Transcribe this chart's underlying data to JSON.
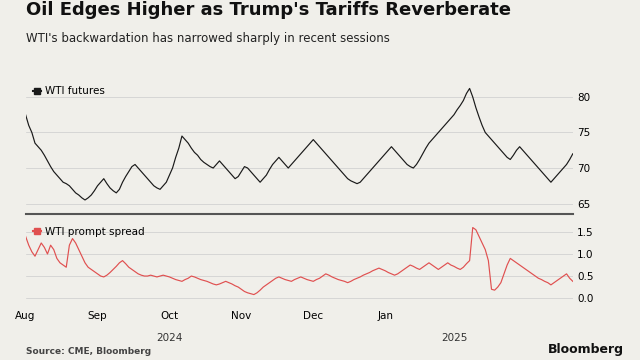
{
  "title": "Oil Edges Higher as Trump's Tariffs Reverberate",
  "subtitle": "WTI's backwardation has narrowed sharply in recent sessions",
  "source": "Source: CME, Bloomberg",
  "watermark": "Bloomberg",
  "panel1_label": "WTI futures",
  "panel2_label": "WTI prompt spread",
  "panel1_color": "#1a1a1a",
  "panel2_color": "#e05050",
  "panel1_ylim": [
    63.5,
    82.5
  ],
  "panel1_yticks": [
    65,
    70,
    75,
    80
  ],
  "panel2_ylim": [
    -0.22,
    1.78
  ],
  "panel2_yticks": [
    0.0,
    0.5,
    1.0,
    1.5
  ],
  "bg_color": "#f0efea",
  "separator_color": "#555555",
  "title_fontsize": 13,
  "subtitle_fontsize": 8.5,
  "label_fontsize": 7.5,
  "tick_fontsize": 7.5,
  "wti_futures": [
    77.5,
    76.0,
    75.0,
    73.5,
    73.0,
    72.5,
    71.8,
    71.0,
    70.2,
    69.5,
    69.0,
    68.5,
    68.0,
    67.8,
    67.5,
    67.0,
    66.5,
    66.2,
    65.8,
    65.5,
    65.8,
    66.2,
    66.8,
    67.5,
    68.0,
    68.5,
    67.8,
    67.2,
    66.8,
    66.5,
    67.0,
    68.0,
    68.8,
    69.5,
    70.2,
    70.5,
    70.0,
    69.5,
    69.0,
    68.5,
    68.0,
    67.5,
    67.2,
    67.0,
    67.5,
    68.0,
    69.0,
    70.0,
    71.5,
    72.8,
    74.5,
    74.0,
    73.5,
    72.8,
    72.2,
    71.8,
    71.2,
    70.8,
    70.5,
    70.2,
    70.0,
    70.5,
    71.0,
    70.5,
    70.0,
    69.5,
    69.0,
    68.5,
    68.8,
    69.5,
    70.2,
    70.0,
    69.5,
    69.0,
    68.5,
    68.0,
    68.5,
    69.0,
    69.8,
    70.5,
    71.0,
    71.5,
    71.0,
    70.5,
    70.0,
    70.5,
    71.0,
    71.5,
    72.0,
    72.5,
    73.0,
    73.5,
    74.0,
    73.5,
    73.0,
    72.5,
    72.0,
    71.5,
    71.0,
    70.5,
    70.0,
    69.5,
    69.0,
    68.5,
    68.2,
    68.0,
    67.8,
    68.0,
    68.5,
    69.0,
    69.5,
    70.0,
    70.5,
    71.0,
    71.5,
    72.0,
    72.5,
    73.0,
    72.5,
    72.0,
    71.5,
    71.0,
    70.5,
    70.2,
    70.0,
    70.5,
    71.2,
    72.0,
    72.8,
    73.5,
    74.0,
    74.5,
    75.0,
    75.5,
    76.0,
    76.5,
    77.0,
    77.5,
    78.2,
    78.8,
    79.5,
    80.5,
    81.2,
    80.0,
    78.5,
    77.2,
    76.0,
    75.0,
    74.5,
    74.0,
    73.5,
    73.0,
    72.5,
    72.0,
    71.5,
    71.2,
    71.8,
    72.5,
    73.0,
    72.5,
    72.0,
    71.5,
    71.0,
    70.5,
    70.0,
    69.5,
    69.0,
    68.5,
    68.0,
    68.5,
    69.0,
    69.5,
    70.0,
    70.5,
    71.2,
    72.0
  ],
  "wti_spread": [
    1.4,
    1.2,
    1.05,
    0.95,
    1.1,
    1.25,
    1.15,
    1.0,
    1.2,
    1.1,
    0.9,
    0.8,
    0.75,
    0.7,
    1.2,
    1.35,
    1.25,
    1.1,
    0.95,
    0.8,
    0.7,
    0.65,
    0.6,
    0.55,
    0.5,
    0.48,
    0.52,
    0.58,
    0.65,
    0.72,
    0.8,
    0.85,
    0.78,
    0.7,
    0.65,
    0.6,
    0.55,
    0.52,
    0.5,
    0.5,
    0.52,
    0.5,
    0.48,
    0.5,
    0.52,
    0.5,
    0.48,
    0.45,
    0.42,
    0.4,
    0.38,
    0.42,
    0.45,
    0.5,
    0.48,
    0.45,
    0.42,
    0.4,
    0.38,
    0.35,
    0.32,
    0.3,
    0.32,
    0.35,
    0.38,
    0.35,
    0.32,
    0.28,
    0.25,
    0.2,
    0.15,
    0.12,
    0.1,
    0.08,
    0.12,
    0.18,
    0.25,
    0.3,
    0.35,
    0.4,
    0.45,
    0.48,
    0.45,
    0.42,
    0.4,
    0.38,
    0.42,
    0.45,
    0.48,
    0.45,
    0.42,
    0.4,
    0.38,
    0.42,
    0.45,
    0.5,
    0.55,
    0.52,
    0.48,
    0.45,
    0.42,
    0.4,
    0.38,
    0.35,
    0.38,
    0.42,
    0.45,
    0.48,
    0.52,
    0.55,
    0.58,
    0.62,
    0.65,
    0.68,
    0.65,
    0.62,
    0.58,
    0.55,
    0.52,
    0.55,
    0.6,
    0.65,
    0.7,
    0.75,
    0.72,
    0.68,
    0.65,
    0.7,
    0.75,
    0.8,
    0.75,
    0.7,
    0.65,
    0.7,
    0.75,
    0.8,
    0.75,
    0.72,
    0.68,
    0.65,
    0.7,
    0.78,
    0.85,
    1.6,
    1.55,
    1.4,
    1.25,
    1.1,
    0.85,
    0.2,
    0.18,
    0.25,
    0.35,
    0.55,
    0.75,
    0.9,
    0.85,
    0.8,
    0.75,
    0.7,
    0.65,
    0.6,
    0.55,
    0.5,
    0.45,
    0.42,
    0.38,
    0.35,
    0.3,
    0.35,
    0.4,
    0.45,
    0.5,
    0.55,
    0.45,
    0.38
  ],
  "month_tick_indices": [
    0,
    23,
    46,
    69,
    92,
    115,
    137
  ],
  "month_labels": [
    "Aug",
    "Sep",
    "Oct",
    "Nov",
    "Dec",
    "Jan",
    ""
  ],
  "year_tick_indices": [
    46,
    137
  ],
  "year_labels": [
    "2024",
    "2025"
  ]
}
